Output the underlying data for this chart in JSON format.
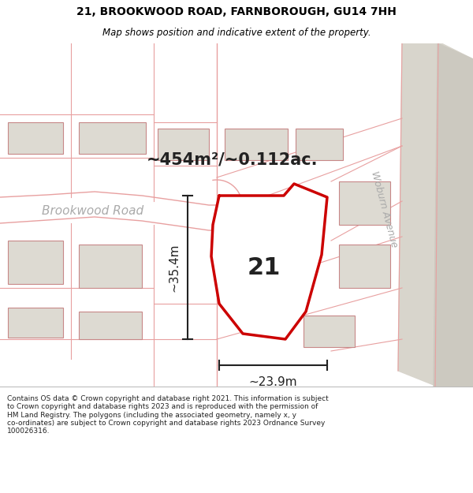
{
  "title_line1": "21, BROOKWOOD ROAD, FARNBOROUGH, GU14 7HH",
  "title_line2": "Map shows position and indicative extent of the property.",
  "area_label": "~454m²/~0.112ac.",
  "number_label": "21",
  "dim_h_label": "~35.4m",
  "dim_w_label": "~23.9m",
  "road_label": "Brookwood Road",
  "avenue_label": "Woburn Avenue",
  "footer_text": "Contains OS data © Crown copyright and database right 2021. This information is subject\nto Crown copyright and database rights 2023 and is reproduced with the permission of\nHM Land Registry. The polygons (including the associated geometry, namely x, y\nco-ordinates) are subject to Crown copyright and database rights 2023 Ordnance Survey\n100026316.",
  "map_bg": "#f5f2ed",
  "plot_fill": "#ffffff",
  "plot_edge": "#cc0000",
  "road_line_color": "#e8a0a0",
  "dim_color": "#222222",
  "grey_strip_color": "#ccc9c0",
  "grey_strip2_color": "#d8d5cc",
  "footer_bg": "#ffffff",
  "title_bg": "#ffffff",
  "building_fill": "#dddad2",
  "building_edge": "#c88888",
  "road_label_color": "#aaaaaa",
  "title_fontsize": 10,
  "subtitle_fontsize": 8.5,
  "area_fontsize": 15,
  "number_fontsize": 22,
  "dim_fontsize": 11,
  "road_fontsize": 11,
  "footer_fontsize": 6.5
}
